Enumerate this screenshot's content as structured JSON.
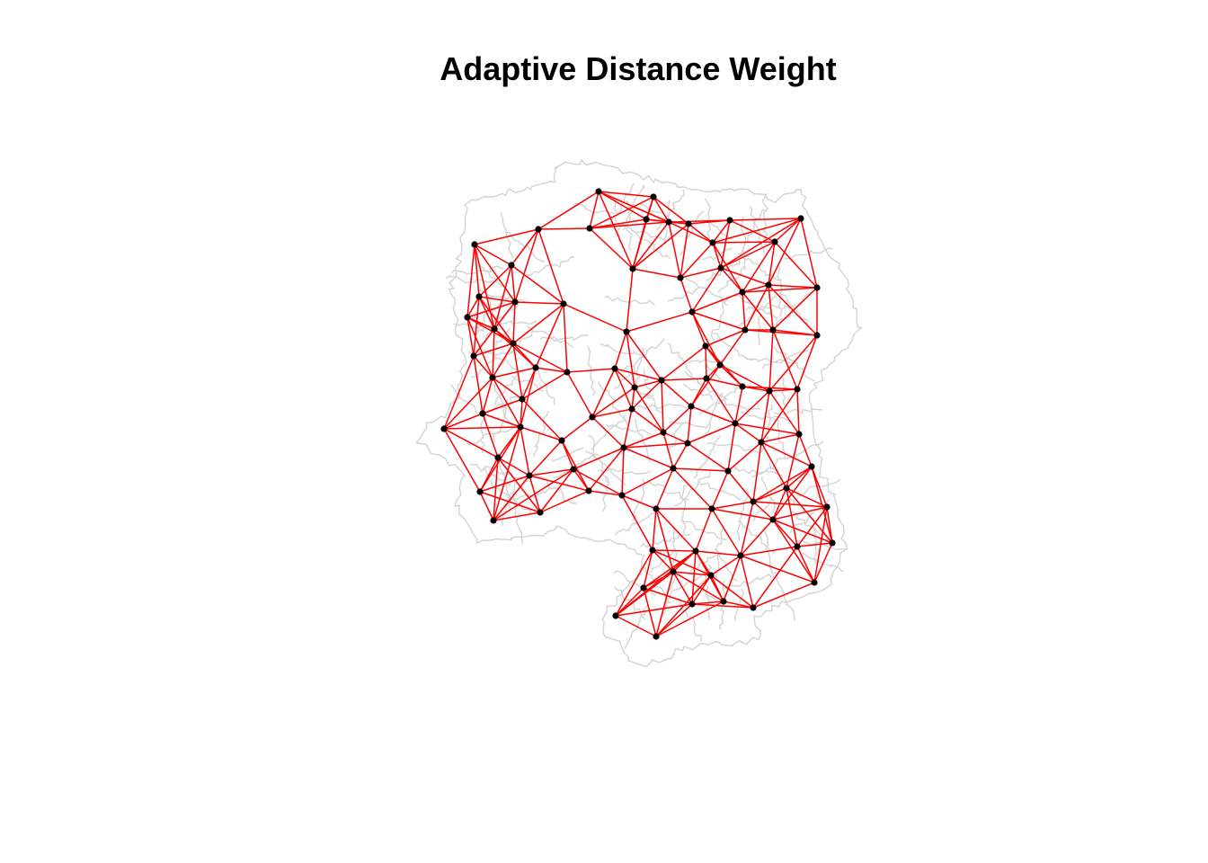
{
  "title": "Adaptive Distance Weight",
  "colors": {
    "background": "#ffffff",
    "boundary": "#d3d3d3",
    "link": "#ff0000",
    "node": "#000000"
  },
  "chart_data": {
    "type": "network_map",
    "title": "Adaptive Distance Weight",
    "node_count": 85,
    "layers": [
      "region boundaries",
      "neighbour links",
      "centroid points"
    ]
  }
}
